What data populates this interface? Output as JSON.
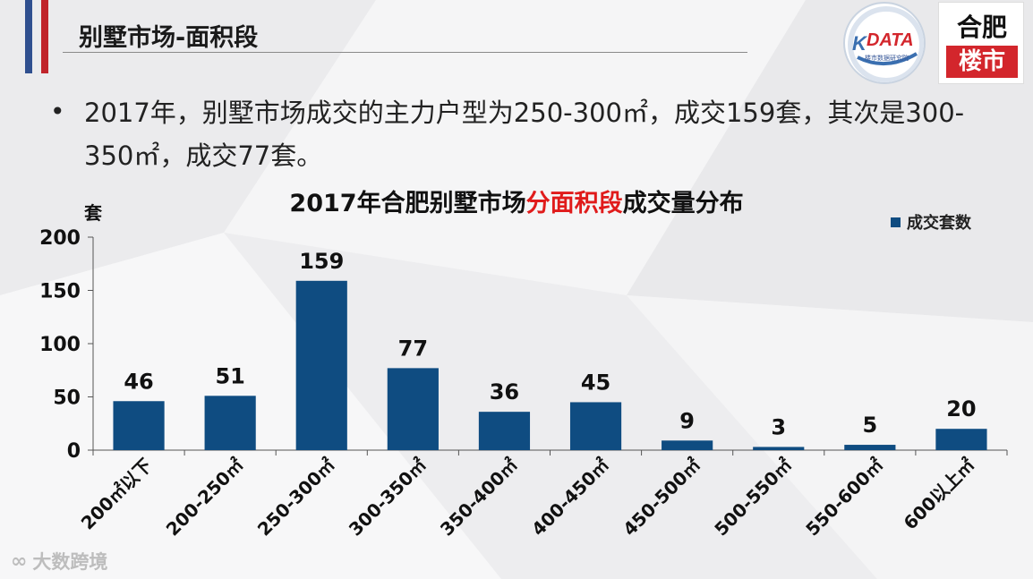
{
  "header": {
    "title": "别墅市场-面积段",
    "logo_ks": {
      "text": "DATA",
      "subtext": "楼市数据研究院"
    },
    "logo_hf": {
      "top": "合肥",
      "bottom": "楼市"
    }
  },
  "summary": {
    "text": "2017年，别墅市场成交的主力户型为250-300㎡，成交159套，其次是300-350㎡，成交77套。"
  },
  "watermark": {
    "text": "大数跨境"
  },
  "colors": {
    "bar": "#0f4c81",
    "title_highlight": "#e01b1b",
    "accent_red": "#c0242b",
    "accent_blue": "#2f4f8f"
  },
  "chart_data": {
    "type": "bar",
    "title_parts": [
      "2017年合肥别墅市场",
      "分面积段",
      "成交量分布"
    ],
    "ylabel": "套",
    "xlabel": "",
    "ylim": [
      0,
      200
    ],
    "yticks": [
      0,
      50,
      100,
      150,
      200
    ],
    "legend_position": "top-right",
    "grid": false,
    "categories": [
      "200㎡以下",
      "200-250㎡",
      "250-300㎡",
      "300-350㎡",
      "350-400㎡",
      "400-450㎡",
      "450-500㎡",
      "500-550㎡",
      "550-600㎡",
      "600以上㎡"
    ],
    "series": [
      {
        "name": "成交套数",
        "values": [
          46,
          51,
          159,
          77,
          36,
          45,
          9,
          3,
          5,
          20
        ]
      }
    ]
  }
}
